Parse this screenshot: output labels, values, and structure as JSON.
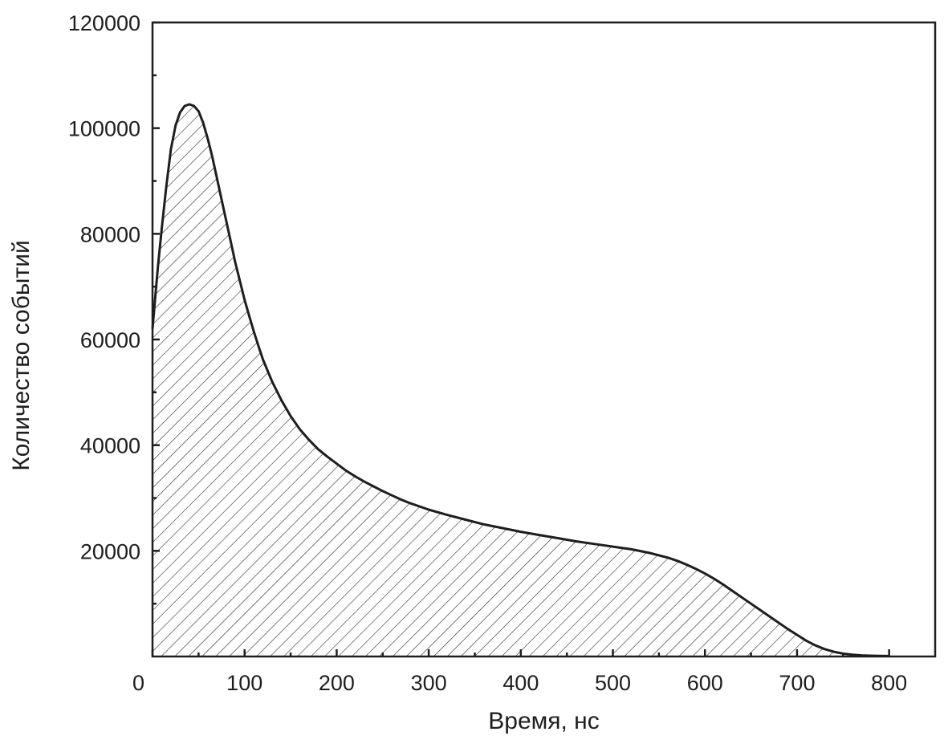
{
  "chart_data": {
    "type": "area",
    "title": "",
    "xlabel": "Время, нс",
    "ylabel": "Количество событий",
    "xlim": [
      0,
      850
    ],
    "ylim": [
      0,
      120000
    ],
    "x_ticks": [
      0,
      100,
      200,
      300,
      400,
      500,
      600,
      700,
      800
    ],
    "y_ticks": [
      20000,
      40000,
      60000,
      80000,
      100000,
      120000
    ],
    "x_tick_labels": [
      "0",
      "100",
      "200",
      "300",
      "400",
      "500",
      "600",
      "700",
      "800"
    ],
    "y_tick_labels": [
      "20000",
      "40000",
      "60000",
      "80000",
      "100000",
      "120000"
    ],
    "grid": false,
    "fill_pattern": "diagonal-hatch",
    "series": [
      {
        "x": [
          0,
          3,
          6,
          10,
          15,
          20,
          25,
          30,
          35,
          40,
          45,
          50,
          55,
          60,
          65,
          70,
          75,
          80,
          85,
          90,
          95,
          100,
          105,
          110,
          115,
          120,
          130,
          140,
          150,
          160,
          170,
          180,
          190,
          200,
          210,
          220,
          230,
          240,
          250,
          260,
          270,
          280,
          290,
          300,
          320,
          340,
          360,
          380,
          400,
          420,
          440,
          460,
          480,
          500,
          520,
          540,
          560,
          570,
          580,
          590,
          600,
          610,
          620,
          630,
          640,
          650,
          660,
          670,
          680,
          690,
          700,
          710,
          720,
          730,
          740,
          750,
          760,
          770,
          780,
          790,
          800
        ],
        "y": [
          62000,
          68000,
          74000,
          81000,
          89000,
          96000,
          100500,
          103000,
          104200,
          104500,
          104200,
          103200,
          101000,
          98000,
          94500,
          90500,
          86500,
          82500,
          78500,
          74500,
          71000,
          67500,
          64500,
          61500,
          58800,
          56200,
          52000,
          48500,
          45500,
          43000,
          41000,
          39200,
          37800,
          36500,
          35200,
          34100,
          33100,
          32200,
          31300,
          30500,
          29700,
          29000,
          28400,
          27800,
          26800,
          25900,
          25000,
          24300,
          23600,
          23000,
          22400,
          21800,
          21300,
          20800,
          20300,
          19600,
          18700,
          18100,
          17400,
          16600,
          15700,
          14700,
          13600,
          12400,
          11200,
          10000,
          8800,
          7600,
          6400,
          5200,
          4100,
          3000,
          2100,
          1400,
          900,
          550,
          350,
          220,
          150,
          110,
          90
        ]
      }
    ]
  }
}
